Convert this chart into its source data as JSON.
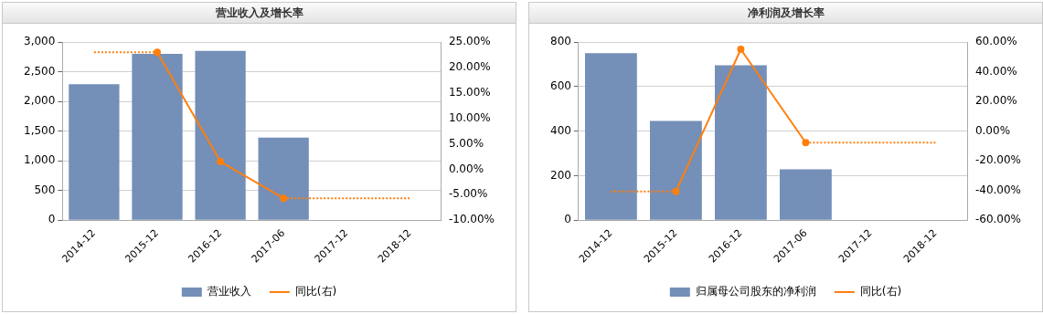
{
  "chart_data": [
    {
      "type": "bar",
      "title": "营业收入及增长率",
      "categories": [
        "2014-12",
        "2015-12",
        "2016-12",
        "2017-06",
        "2017-12",
        "2018-12"
      ],
      "series": [
        {
          "name": "营业收入",
          "color": "#748fb8",
          "values": [
            2290,
            2800,
            2850,
            1390,
            null,
            null
          ]
        },
        {
          "name": "同比(右)",
          "type": "line",
          "axis": "y2",
          "color": "#ff7f0e",
          "marker": "circle",
          "line_style": "solid",
          "values": [
            null,
            23.0,
            1.5,
            -5.7,
            null,
            null
          ]
        },
        {
          "type": "line",
          "axis": "y2",
          "color": "#ff7f0e",
          "marker": "none",
          "line_style": "dotted",
          "values": [
            23.0,
            23.0,
            null,
            -5.7,
            -5.7,
            -5.7
          ]
        }
      ],
      "ylim": [
        0,
        3000
      ],
      "yticks": [
        0,
        {
          "value": 500,
          "label": "500"
        },
        {
          "value": 1000,
          "label": "1,000"
        },
        {
          "value": 1500,
          "label": "1,500"
        },
        {
          "value": 2000,
          "label": "2,000"
        },
        {
          "value": 2500,
          "label": "2,500"
        },
        {
          "value": 3000,
          "label": "3,000"
        }
      ],
      "y2lim": [
        -10,
        25
      ],
      "y2ticks": [
        {
          "value": -10,
          "label": "-10.00%"
        },
        {
          "value": -5,
          "label": "-5.00%"
        },
        {
          "value": 0,
          "label": "0.00%"
        },
        {
          "value": 5,
          "label": "5.00%"
        },
        {
          "value": 10,
          "label": "10.00%"
        },
        {
          "value": 15,
          "label": "15.00%"
        },
        {
          "value": 20,
          "label": "20.00%"
        },
        {
          "value": 25,
          "label": "25.00%"
        }
      ],
      "grid": "y",
      "legend": "bottom"
    },
    {
      "type": "bar",
      "title": "净利润及增长率",
      "categories": [
        "2014-12",
        "2015-12",
        "2016-12",
        "2017-06",
        "2017-12",
        "2018-12"
      ],
      "series": [
        {
          "name": "归属母公司股东的净利润",
          "color": "#748fb8",
          "values": [
            750,
            445,
            695,
            228,
            null,
            null
          ]
        },
        {
          "name": "同比(右)",
          "type": "line",
          "axis": "y2",
          "color": "#ff7f0e",
          "marker": "circle",
          "line_style": "solid",
          "values": [
            null,
            -40.7,
            55.1,
            -7.8,
            null,
            null
          ]
        },
        {
          "type": "line",
          "axis": "y2",
          "color": "#ff7f0e",
          "marker": "none",
          "line_style": "dotted",
          "values": [
            -40.7,
            -40.7,
            null,
            -7.8,
            -7.8,
            -7.8
          ]
        }
      ],
      "ylim": [
        0,
        800
      ],
      "yticks": [
        0,
        200,
        400,
        600,
        800
      ],
      "y2lim": [
        -60,
        60
      ],
      "y2ticks": [
        {
          "value": -60,
          "label": "-60.00%"
        },
        {
          "value": -40,
          "label": "-40.00%"
        },
        {
          "value": -20,
          "label": "-20.00%"
        },
        {
          "value": 0,
          "label": "0.00%"
        },
        {
          "value": 20,
          "label": "20.00%"
        },
        {
          "value": 40,
          "label": "40.00%"
        },
        {
          "value": 60,
          "label": "60.00%"
        }
      ],
      "grid": "y",
      "legend": "bottom"
    }
  ]
}
